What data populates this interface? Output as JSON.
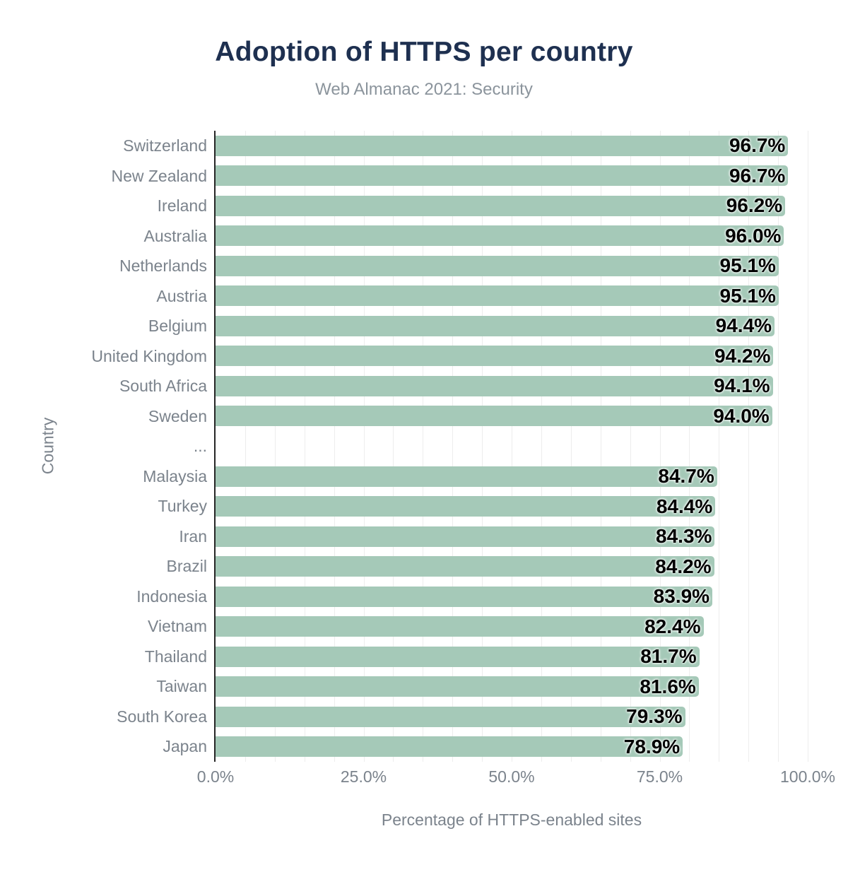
{
  "chart_data": {
    "type": "bar",
    "orientation": "horizontal",
    "title": "Adoption of HTTPS per country",
    "subtitle": "Web Almanac 2021: Security",
    "xlabel": "Percentage of HTTPS-enabled sites",
    "ylabel": "Country",
    "xlim": [
      0,
      100
    ],
    "grid": "vertical, minor step 5%",
    "legend": "none",
    "x_ticks": [
      {
        "value": 0,
        "label": "0.0%"
      },
      {
        "value": 25,
        "label": "25.0%"
      },
      {
        "value": 50,
        "label": "50.0%"
      },
      {
        "value": 75,
        "label": "75.0%"
      },
      {
        "value": 100,
        "label": "100.0%"
      }
    ],
    "gridline_step_percent": 5,
    "categories": [
      "Switzerland",
      "New Zealand",
      "Ireland",
      "Australia",
      "Netherlands",
      "Austria",
      "Belgium",
      "United Kingdom",
      "South Africa",
      "Sweden",
      "...",
      "Malaysia",
      "Turkey",
      "Iran",
      "Brazil",
      "Indonesia",
      "Vietnam",
      "Thailand",
      "Taiwan",
      "South Korea",
      "Japan"
    ],
    "values": [
      96.7,
      96.7,
      96.2,
      96.0,
      95.1,
      95.1,
      94.4,
      94.2,
      94.1,
      94.0,
      null,
      84.7,
      84.4,
      84.3,
      84.2,
      83.9,
      82.4,
      81.7,
      81.6,
      79.3,
      78.9
    ],
    "value_labels": [
      "96.7%",
      "96.7%",
      "96.2%",
      "96.0%",
      "95.1%",
      "95.1%",
      "94.4%",
      "94.2%",
      "94.1%",
      "94.0%",
      "",
      "84.7%",
      "84.4%",
      "84.3%",
      "84.2%",
      "83.9%",
      "82.4%",
      "81.7%",
      "81.6%",
      "79.3%",
      "78.9%"
    ],
    "colors": {
      "bar": "#a5c9b8",
      "title": "#1e3050",
      "subtitle": "#8b949c",
      "axis_text": "#7b838c",
      "value_label": "#000000",
      "axis_line": "#262626",
      "gridline": "#ededed",
      "background": "#ffffff"
    }
  }
}
